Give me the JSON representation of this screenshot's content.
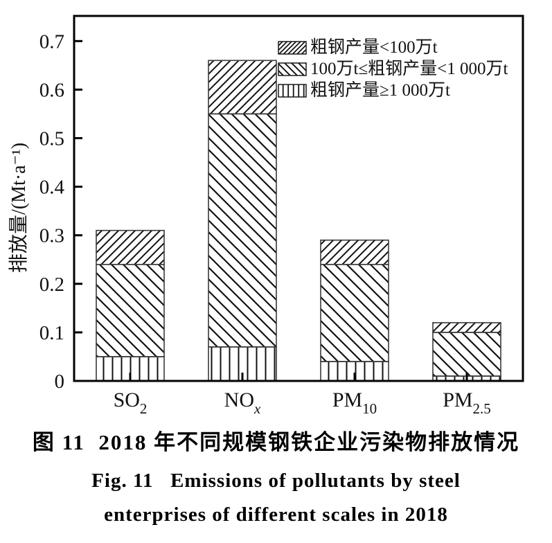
{
  "figure": {
    "caption_zh": "图 11  2018 年不同规模钢铁企业污染物排放情况",
    "caption_en_line1": "Fig. 11   Emissions of pollutants by steel",
    "caption_en_line2": "enterprises of different scales in 2018"
  },
  "chart_data": {
    "type": "bar",
    "stacked": true,
    "title": "2018 年不同规模钢铁企业污染物排放情况",
    "title_en": "Emissions of pollutants by steel enterprises of different scales in 2018",
    "xlabel": "",
    "ylabel": "排放量/(Mt·a⁻¹)",
    "ylim": [
      0,
      0.752
    ],
    "yticks": [
      0,
      0.1,
      0.2,
      0.3,
      0.4,
      0.5,
      0.6,
      0.7
    ],
    "ytick_labels": [
      "0",
      "0.1",
      "0.2",
      "0.3",
      "0.4",
      "0.5",
      "0.6",
      "0.7"
    ],
    "grid": false,
    "legend_position": "top-right-inside",
    "categories": [
      {
        "base": "SO",
        "sub": "2",
        "italic_sub": false
      },
      {
        "base": "NO",
        "sub": "x",
        "italic_sub": true
      },
      {
        "base": "PM",
        "sub": "10",
        "italic_sub": false
      },
      {
        "base": "PM",
        "sub": "2.5",
        "italic_sub": false
      }
    ],
    "series": [
      {
        "name": "粗钢产量≥1 000万t",
        "pattern": "vertical",
        "values": [
          0.05,
          0.07,
          0.04,
          0.01
        ]
      },
      {
        "name": "100万t≤粗钢产量<1 000万t",
        "pattern": "diag-down",
        "values": [
          0.19,
          0.48,
          0.2,
          0.09
        ]
      },
      {
        "name": "粗钢产量<100万t",
        "pattern": "diag-up",
        "values": [
          0.07,
          0.11,
          0.05,
          0.02
        ]
      }
    ],
    "totals": {
      "SO2": 0.31,
      "NOx": 0.66,
      "PM10": 0.29,
      "PM2.5": 0.12
    },
    "legend": [
      {
        "label": "粗钢产量<100万t",
        "pattern": "diag-up"
      },
      {
        "label": "100万t≤粗钢产量<1 000万t",
        "pattern": "diag-down"
      },
      {
        "label": "粗钢产量≥1 000万t",
        "pattern": "vertical"
      }
    ],
    "colors": {
      "ink": "#111111",
      "frame": "#000000",
      "bar_stroke": "#3a3a3a",
      "background": "#ffffff"
    }
  }
}
